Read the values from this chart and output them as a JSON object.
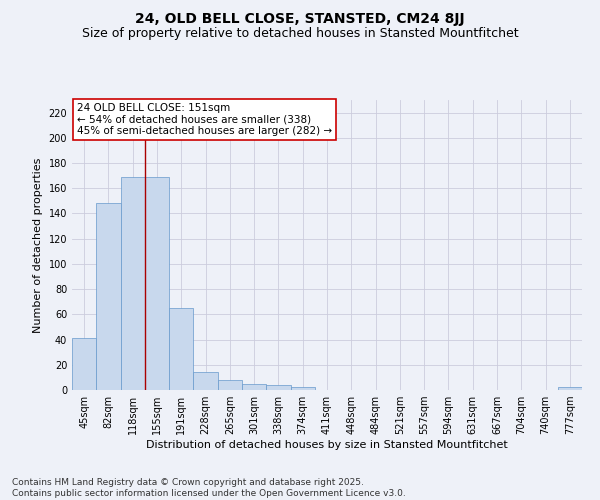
{
  "title": "24, OLD BELL CLOSE, STANSTED, CM24 8JJ",
  "subtitle": "Size of property relative to detached houses in Stansted Mountfitchet",
  "xlabel": "Distribution of detached houses by size in Stansted Mountfitchet",
  "ylabel": "Number of detached properties",
  "categories": [
    "45sqm",
    "82sqm",
    "118sqm",
    "155sqm",
    "191sqm",
    "228sqm",
    "265sqm",
    "301sqm",
    "338sqm",
    "374sqm",
    "411sqm",
    "448sqm",
    "484sqm",
    "521sqm",
    "557sqm",
    "594sqm",
    "631sqm",
    "667sqm",
    "704sqm",
    "740sqm",
    "777sqm"
  ],
  "values": [
    41,
    148,
    169,
    169,
    65,
    14,
    8,
    5,
    4,
    2,
    0,
    0,
    0,
    0,
    0,
    0,
    0,
    0,
    0,
    0,
    2
  ],
  "bar_color": "#c8d8ed",
  "bar_edge_color": "#6699cc",
  "vline_x": 2.5,
  "vline_color": "#aa0000",
  "annotation_text": "24 OLD BELL CLOSE: 151sqm\n← 54% of detached houses are smaller (338)\n45% of semi-detached houses are larger (282) →",
  "annotation_box_color": "#ffffff",
  "annotation_box_edge": "#cc0000",
  "ylim": [
    0,
    230
  ],
  "yticks": [
    0,
    20,
    40,
    60,
    80,
    100,
    120,
    140,
    160,
    180,
    200,
    220
  ],
  "background_color": "#eef1f8",
  "footer": "Contains HM Land Registry data © Crown copyright and database right 2025.\nContains public sector information licensed under the Open Government Licence v3.0.",
  "title_fontsize": 10,
  "subtitle_fontsize": 9,
  "axis_label_fontsize": 8,
  "tick_fontsize": 7,
  "annotation_fontsize": 7.5,
  "footer_fontsize": 6.5
}
